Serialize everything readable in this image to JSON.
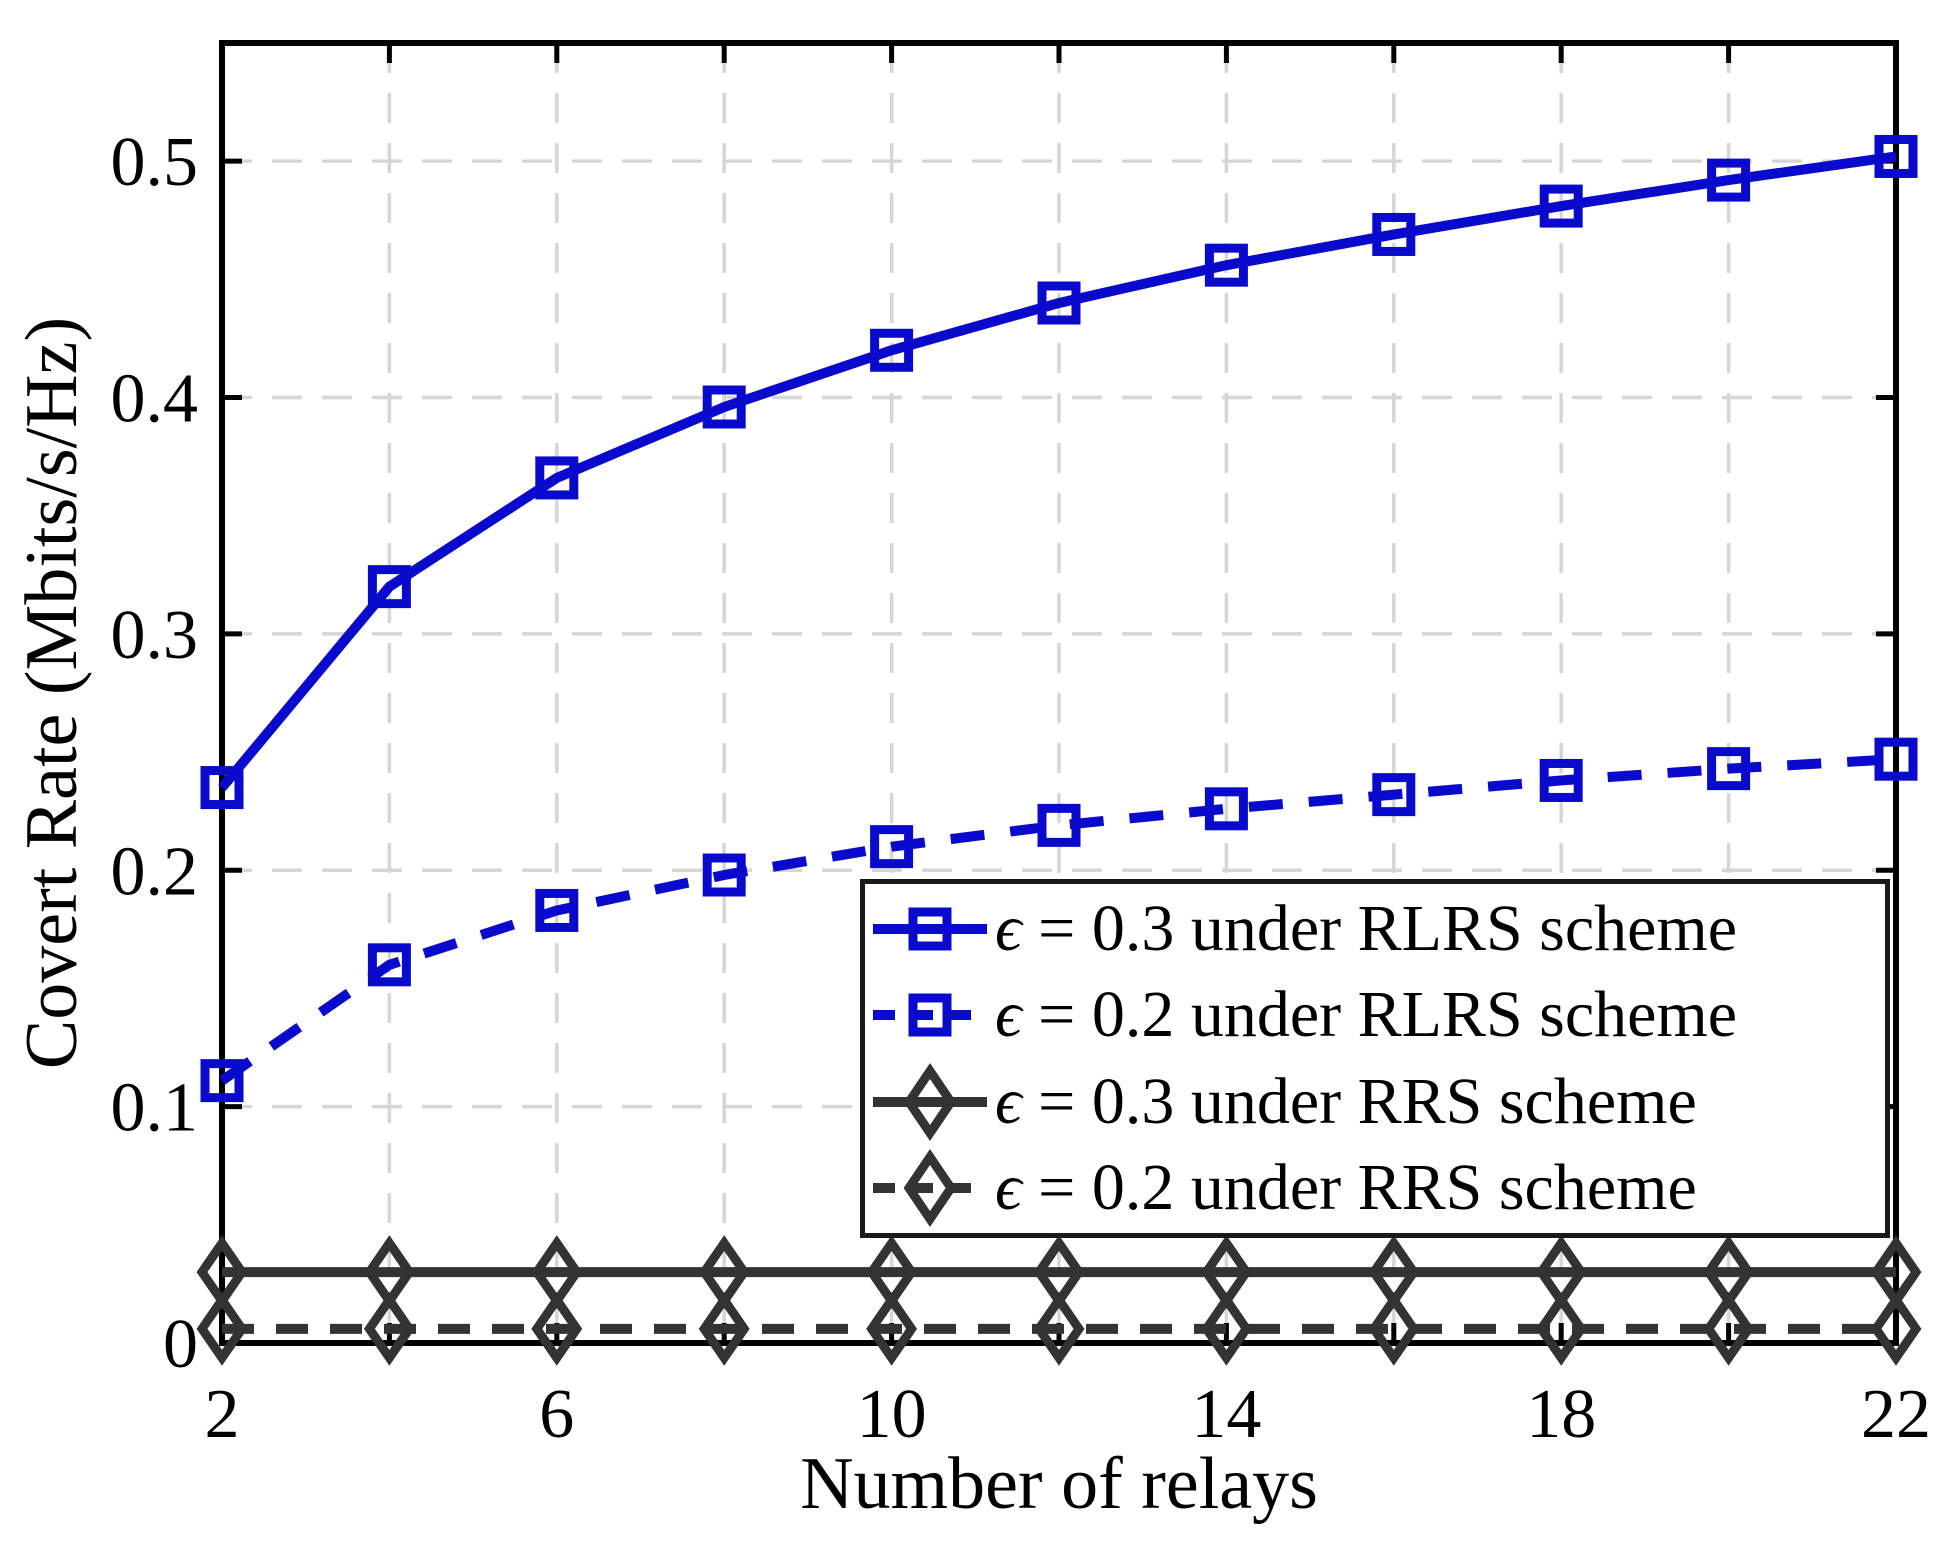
{
  "figure": {
    "xlabel": "Number of relays",
    "ylabel": "Covert Rate (Mbits/s/Hz)"
  },
  "chart_data": {
    "type": "line",
    "title": "",
    "xlabel": "Number of relays",
    "ylabel": "Covert Rate (Mbits/s/Hz)",
    "xlim": [
      2,
      22
    ],
    "ylim": [
      0,
      0.55
    ],
    "grid": "on",
    "grid_color": "#d6d6d6",
    "legend_position": "inside lower-right",
    "x": [
      2,
      4,
      6,
      8,
      10,
      12,
      14,
      16,
      18,
      20,
      22
    ],
    "x_tick_values": [
      2,
      6,
      10,
      14,
      18,
      22
    ],
    "x_tick_labels": [
      "2",
      "6",
      "10",
      "14",
      "18",
      "22"
    ],
    "x_grid_values": [
      2,
      4,
      6,
      8,
      10,
      12,
      14,
      16,
      18,
      20,
      22
    ],
    "y_tick_values": [
      0,
      0.1,
      0.2,
      0.3,
      0.4,
      0.5
    ],
    "y_tick_labels": [
      "0",
      "0.1",
      "0.2",
      "0.3",
      "0.4",
      "0.5"
    ],
    "y_grid_values": [
      0.1,
      0.2,
      0.3,
      0.4,
      0.5
    ],
    "series": [
      {
        "name": "eps-0.3-rlrs",
        "label_symbol": "ϵ",
        "label_text": " = 0.3 under RLRS scheme",
        "color": "#0a0acc",
        "line": "solid",
        "marker": "square",
        "values": [
          0.235,
          0.32,
          0.366,
          0.396,
          0.42,
          0.44,
          0.456,
          0.469,
          0.481,
          0.492,
          0.502
        ]
      },
      {
        "name": "eps-0.2-rlrs",
        "label_symbol": "ϵ",
        "label_text": " = 0.2 under RLRS scheme",
        "color": "#0a0acc",
        "line": "dashed",
        "marker": "square",
        "values": [
          0.111,
          0.16,
          0.183,
          0.198,
          0.21,
          0.219,
          0.226,
          0.232,
          0.238,
          0.243,
          0.247
        ]
      },
      {
        "name": "eps-0.3-rrs",
        "label_symbol": "ϵ",
        "label_text": " = 0.3 under RRS scheme",
        "color": "#333333",
        "line": "solid",
        "marker": "diamond",
        "values": [
          0.03,
          0.03,
          0.03,
          0.03,
          0.03,
          0.03,
          0.03,
          0.03,
          0.03,
          0.03,
          0.03
        ]
      },
      {
        "name": "eps-0.2-rrs",
        "label_symbol": "ϵ",
        "label_text": " = 0.2 under RRS scheme",
        "color": "#333333",
        "line": "dashed",
        "marker": "diamond",
        "values": [
          0.006,
          0.006,
          0.006,
          0.006,
          0.006,
          0.006,
          0.006,
          0.006,
          0.006,
          0.006,
          0.006
        ]
      }
    ]
  }
}
